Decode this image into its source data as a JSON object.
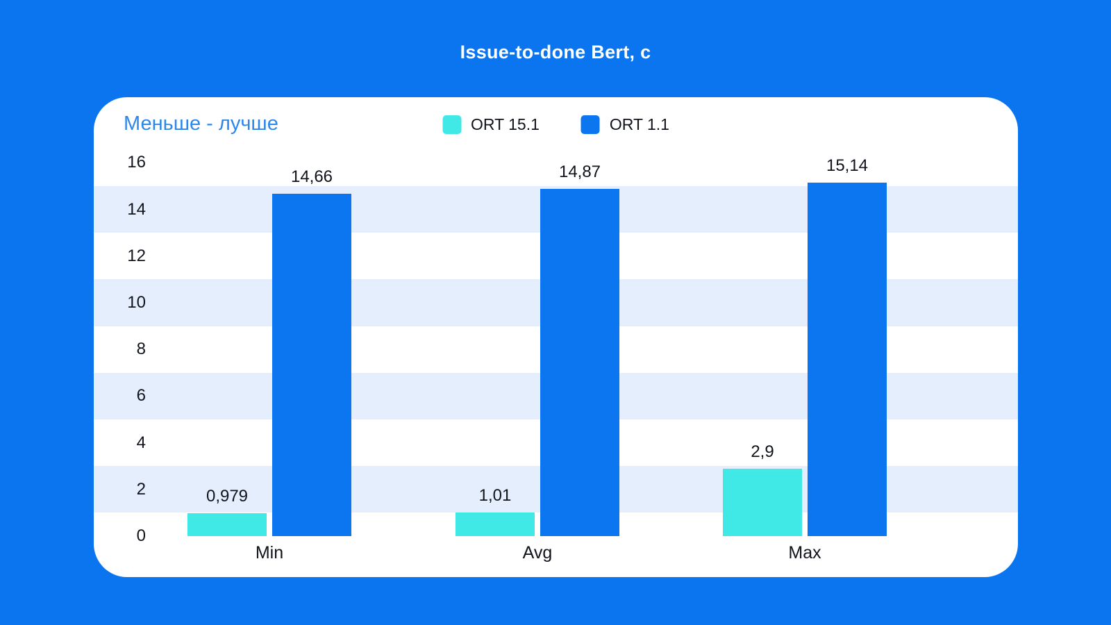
{
  "chart_data": {
    "type": "bar",
    "title": "Issue-to-done Bert, c",
    "note": "Меньше - лучше",
    "categories": [
      "Min",
      "Avg",
      "Max"
    ],
    "series": [
      {
        "name": "ORT 15.1",
        "color": "#40e8e6",
        "values": [
          0.979,
          1.01,
          2.9
        ],
        "labels": [
          "0,979",
          "1,01",
          "2,9"
        ]
      },
      {
        "name": "ORT 1.1",
        "color": "#0b76f0",
        "values": [
          14.66,
          14.87,
          15.14
        ],
        "labels": [
          "14,66",
          "14,87",
          "15,14"
        ]
      }
    ],
    "y_axis": {
      "min": 0,
      "max": 16,
      "step": 2,
      "tick_labels": [
        "0",
        "2",
        "4",
        "6",
        "8",
        "10",
        "12",
        "14",
        "16"
      ]
    },
    "stripe_bands_units": [
      [
        1,
        3
      ],
      [
        5,
        7
      ],
      [
        9,
        11
      ],
      [
        13,
        15
      ]
    ],
    "grid": "horizontal-stripes",
    "legend_position": "top-center",
    "colors": {
      "page_background": "#0b75f0",
      "card_background": "#ffffff",
      "stripe": "#e4eefc",
      "text": "#10131a",
      "note_text": "#2e87e9",
      "title_text": "#ffffff"
    }
  }
}
